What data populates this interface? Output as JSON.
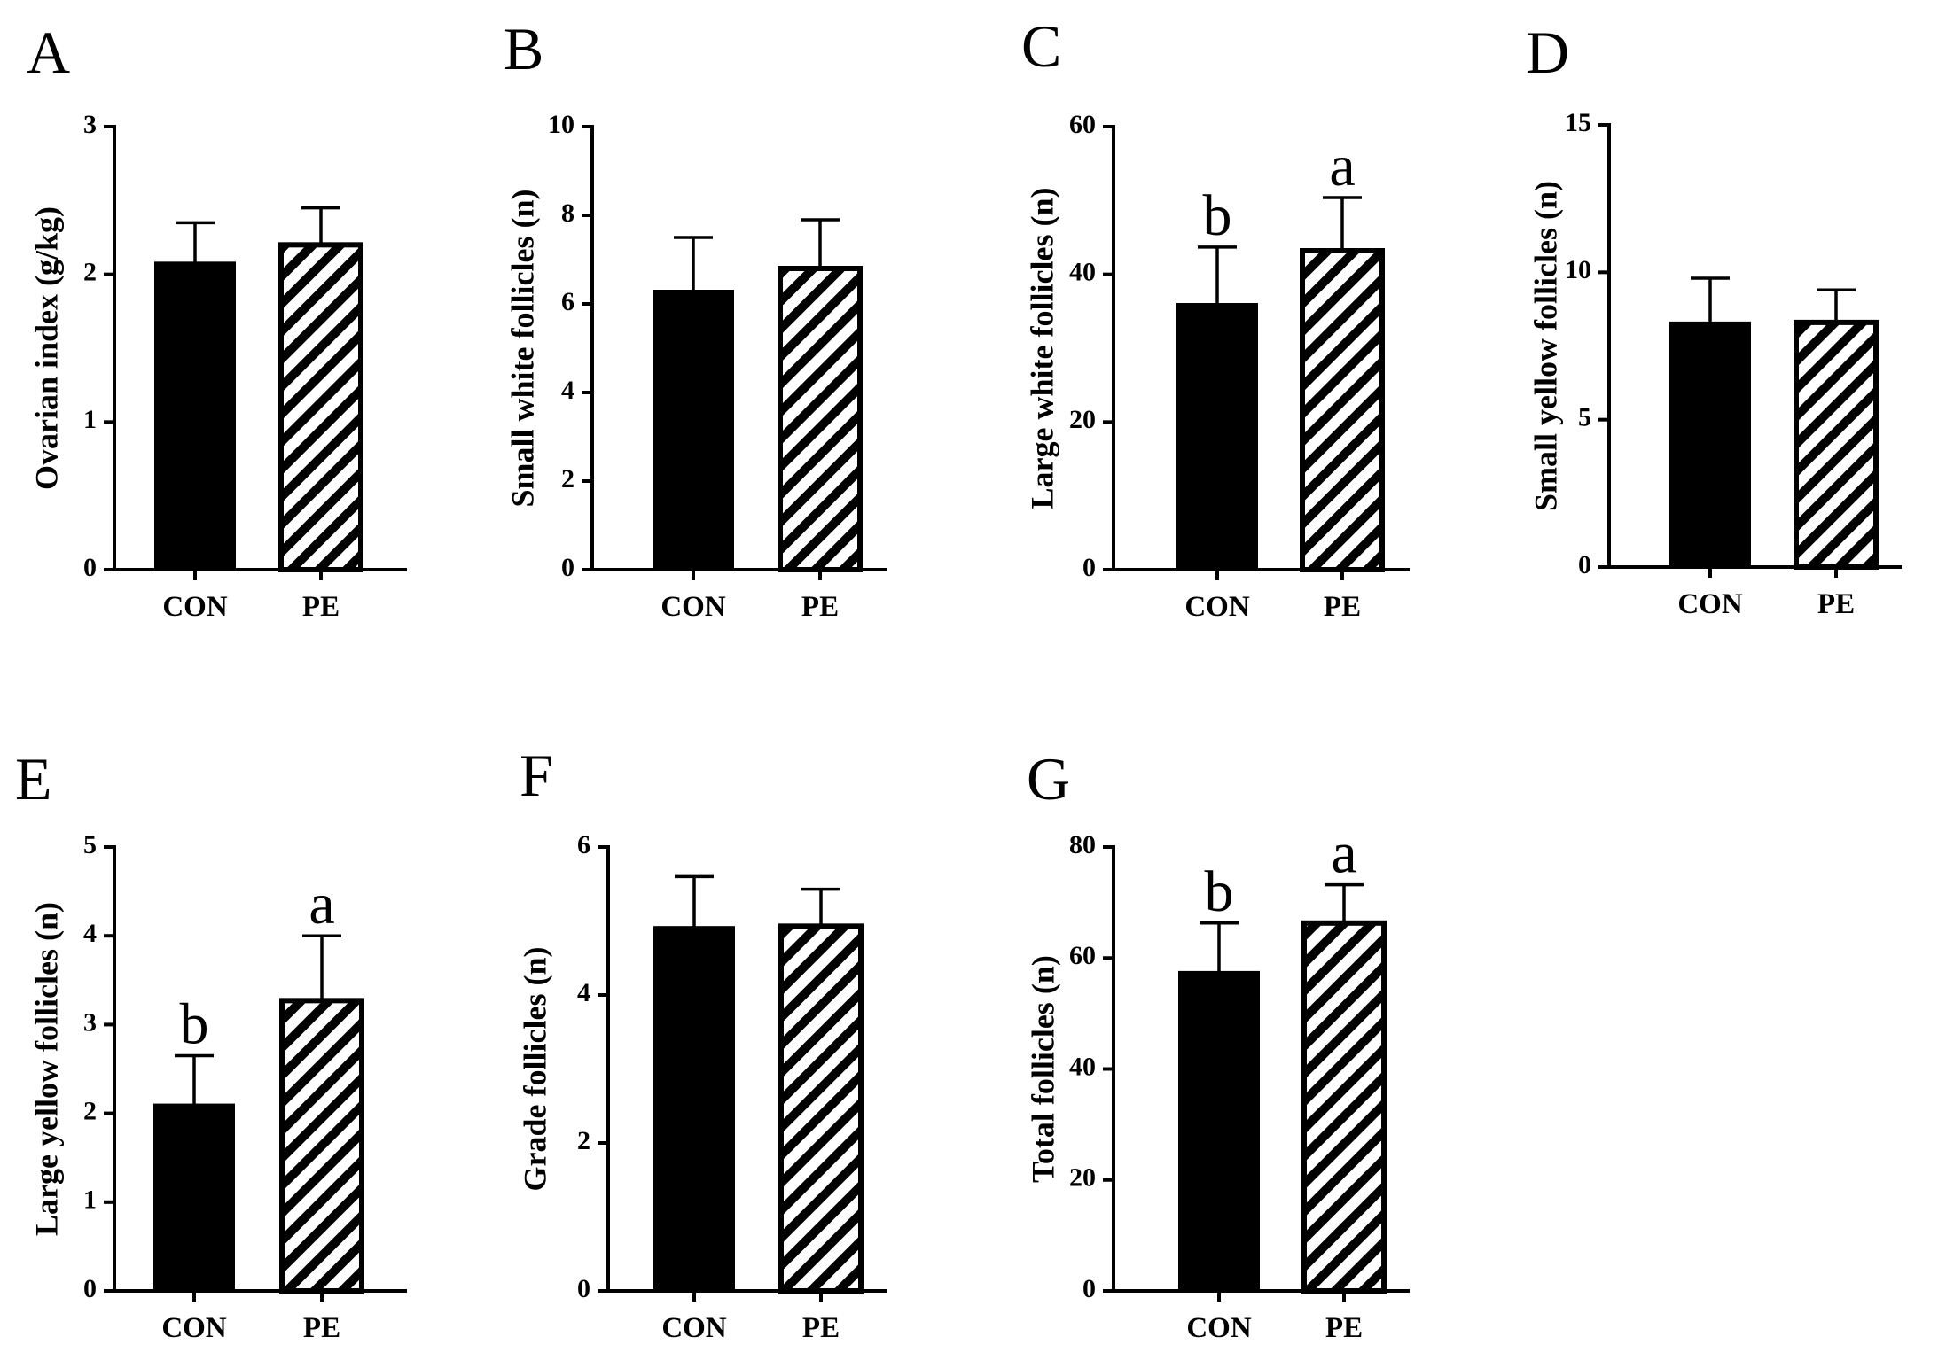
{
  "chart_data": [
    {
      "type": "bar",
      "panel": "A",
      "ylabel": "Ovarian index (g/kg)",
      "ylim": [
        0,
        3
      ],
      "yticks": [
        0,
        1,
        2,
        3
      ],
      "categories": [
        "CON",
        "PE"
      ],
      "values": [
        2.08,
        2.2
      ],
      "errors": [
        0.27,
        0.25
      ],
      "significance": [
        "",
        ""
      ]
    },
    {
      "type": "bar",
      "panel": "B",
      "ylabel": "Small white follicles (n)",
      "ylim": [
        0,
        10
      ],
      "yticks": [
        0,
        2,
        4,
        6,
        8,
        10
      ],
      "categories": [
        "CON",
        "PE"
      ],
      "values": [
        6.3,
        6.8
      ],
      "errors": [
        1.2,
        1.1
      ],
      "significance": [
        "",
        ""
      ]
    },
    {
      "type": "bar",
      "panel": "C",
      "ylabel": "Large white follicles (n)",
      "ylim": [
        0,
        60
      ],
      "yticks": [
        0,
        20,
        40,
        60
      ],
      "categories": [
        "CON",
        "PE"
      ],
      "values": [
        36,
        43.2
      ],
      "errors": [
        7.7,
        7.2
      ],
      "significance": [
        "b",
        "a"
      ]
    },
    {
      "type": "bar",
      "panel": "D",
      "ylabel": "Small yellow follicles (n)",
      "ylim": [
        0,
        15
      ],
      "yticks": [
        0,
        5,
        10,
        15
      ],
      "categories": [
        "CON",
        "PE"
      ],
      "values": [
        8.3,
        8.3
      ],
      "errors": [
        1.5,
        1.1
      ],
      "significance": [
        "",
        ""
      ]
    },
    {
      "type": "bar",
      "panel": "E",
      "ylabel": "Large yellow follicles (n)",
      "ylim": [
        0,
        5
      ],
      "yticks": [
        0,
        1,
        2,
        3,
        4,
        5
      ],
      "categories": [
        "CON",
        "PE"
      ],
      "values": [
        2.1,
        3.27
      ],
      "errors": [
        0.55,
        0.73
      ],
      "significance": [
        "b",
        "a"
      ]
    },
    {
      "type": "bar",
      "panel": "F",
      "ylabel": "Grade follicles (n)",
      "ylim": [
        0,
        6
      ],
      "yticks": [
        0,
        2,
        4,
        6
      ],
      "categories": [
        "CON",
        "PE"
      ],
      "values": [
        4.92,
        4.93
      ],
      "errors": [
        0.68,
        0.5
      ],
      "significance": [
        "",
        ""
      ]
    },
    {
      "type": "bar",
      "panel": "G",
      "ylabel": "Total follicles (n)",
      "ylim": [
        0,
        80
      ],
      "yticks": [
        0,
        20,
        40,
        60,
        80
      ],
      "categories": [
        "CON",
        "PE"
      ],
      "values": [
        57.5,
        66.3
      ],
      "errors": [
        8.8,
        6.9
      ],
      "significance": [
        "b",
        "a"
      ]
    }
  ],
  "colors": {
    "con_fill": "#000000",
    "pe_hatch": "#000000",
    "pe_background": "#ffffff"
  }
}
